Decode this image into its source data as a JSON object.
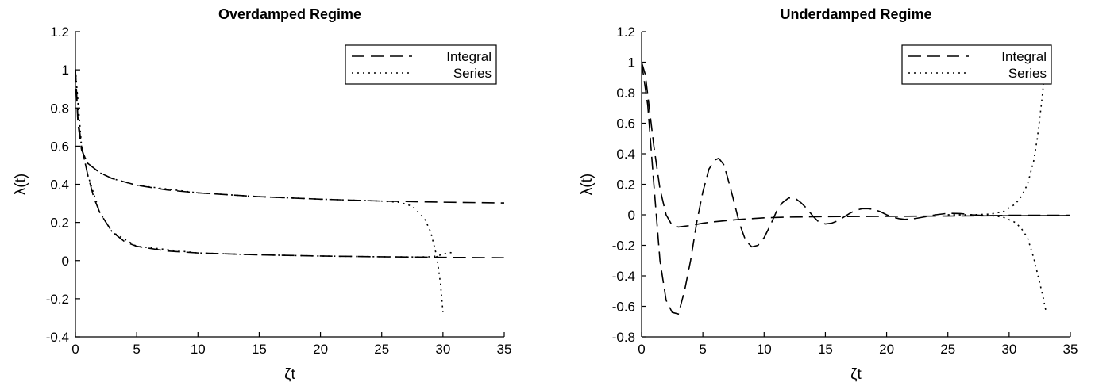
{
  "chart_data": [
    {
      "type": "line",
      "title": "Overdamped Regime",
      "xlabel": "ζt",
      "ylabel": "λ(t)",
      "xlim": [
        0,
        35
      ],
      "ylim": [
        -0.4,
        1.2
      ],
      "xticks": [
        "0",
        "5",
        "10",
        "15",
        "20",
        "25",
        "30",
        "35"
      ],
      "yticks": [
        "-0.4",
        "-0.2",
        "0",
        "0.2",
        "0.4",
        "0.6",
        "0.8",
        "1",
        "1.2"
      ],
      "grid": false,
      "legend_position": "top-right",
      "legend": [
        {
          "label": "Integral",
          "style": "dashed"
        },
        {
          "label": "Series",
          "style": "dotted"
        }
      ],
      "curves": [
        {
          "style": "dashed",
          "x": [
            0.0,
            0.2,
            0.5,
            1.0,
            2.0,
            3.0,
            5.0,
            7.5,
            10.0,
            15.0,
            20.0,
            25.0,
            30.0,
            35.0
          ],
          "y": [
            1.0,
            0.72,
            0.58,
            0.51,
            0.46,
            0.43,
            0.395,
            0.37,
            0.355,
            0.335,
            0.322,
            0.312,
            0.306,
            0.302
          ]
        },
        {
          "style": "dashed",
          "x": [
            0.0,
            0.2,
            0.5,
            1.0,
            1.5,
            2.0,
            3.0,
            4.0,
            5.0,
            7.5,
            10.0,
            15.0,
            20.0,
            25.0,
            30.0,
            35.0
          ],
          "y": [
            1.0,
            0.75,
            0.6,
            0.45,
            0.33,
            0.25,
            0.15,
            0.1,
            0.075,
            0.05,
            0.04,
            0.03,
            0.024,
            0.02,
            0.017,
            0.015
          ]
        },
        {
          "style": "dotted",
          "x": [
            0.0,
            0.5,
            1.0,
            2.0,
            3.0,
            5.0,
            10.0,
            15.0,
            20.0,
            25.0,
            26.5,
            27.5,
            28.5,
            29.0,
            29.5,
            29.8,
            30.0
          ],
          "y": [
            1.0,
            0.58,
            0.51,
            0.46,
            0.43,
            0.395,
            0.355,
            0.335,
            0.322,
            0.312,
            0.305,
            0.285,
            0.22,
            0.15,
            0.02,
            -0.12,
            -0.27
          ]
        },
        {
          "style": "dotted",
          "x": [
            0.0,
            0.5,
            1.0,
            2.0,
            3.0,
            5.0,
            10.0,
            15.0,
            20.0,
            25.0,
            28.0,
            29.0,
            29.5,
            30.0,
            30.5,
            31.0
          ],
          "y": [
            1.0,
            0.6,
            0.45,
            0.25,
            0.15,
            0.075,
            0.04,
            0.03,
            0.024,
            0.02,
            0.019,
            0.02,
            0.024,
            0.033,
            0.042,
            0.04
          ]
        }
      ]
    },
    {
      "type": "line",
      "title": "Underdamped Regime",
      "xlabel": "ζt",
      "ylabel": "λ(t)",
      "xlim": [
        0,
        35
      ],
      "ylim": [
        -0.8,
        1.2
      ],
      "xticks": [
        "0",
        "5",
        "10",
        "15",
        "20",
        "25",
        "30",
        "35"
      ],
      "yticks": [
        "-0.8",
        "-0.6",
        "-0.4",
        "-0.2",
        "0",
        "0.2",
        "0.4",
        "0.6",
        "0.8",
        "1",
        "1.2"
      ],
      "grid": false,
      "legend_position": "top-right",
      "legend": [
        {
          "label": "Integral",
          "style": "dashed"
        },
        {
          "label": "Series",
          "style": "dotted"
        }
      ],
      "curves": [
        {
          "style": "dashed",
          "x": [
            0.0,
            0.3,
            0.6,
            1.0,
            1.5,
            2.0,
            2.5,
            3.0,
            3.5,
            4.0,
            5.0,
            6.0,
            8.0,
            10.0,
            12.0,
            15.0,
            20.0,
            25.0,
            30.0,
            35.0
          ],
          "y": [
            1.0,
            0.92,
            0.72,
            0.45,
            0.17,
            0.0,
            -0.07,
            -0.08,
            -0.075,
            -0.07,
            -0.055,
            -0.045,
            -0.03,
            -0.02,
            -0.015,
            -0.012,
            -0.01,
            -0.008,
            -0.006,
            -0.005
          ]
        },
        {
          "style": "dashed",
          "x": [
            0.0,
            0.5,
            1.0,
            1.5,
            2.0,
            2.5,
            3.0,
            3.5,
            4.0,
            4.5,
            5.0,
            5.5,
            6.0,
            6.3,
            6.7,
            7.0,
            7.5,
            8.0,
            8.5,
            9.0,
            9.5,
            10.0,
            10.5,
            11.0,
            11.5,
            12.0,
            12.5,
            13.0,
            13.5,
            14.0,
            14.5,
            15.0,
            15.5,
            16.0,
            16.5,
            17.0,
            17.5,
            18.0,
            18.5,
            19.0,
            19.5,
            20.0,
            20.5,
            21.0,
            21.5,
            22.0,
            22.5,
            23.0,
            24.0,
            25.0,
            26.0,
            27.0,
            28.0,
            29.0,
            30.0,
            35.0
          ],
          "y": [
            1.0,
            0.72,
            0.2,
            -0.3,
            -0.56,
            -0.64,
            -0.65,
            -0.5,
            -0.3,
            -0.05,
            0.15,
            0.3,
            0.36,
            0.37,
            0.33,
            0.25,
            0.1,
            -0.06,
            -0.17,
            -0.21,
            -0.2,
            -0.15,
            -0.07,
            0.02,
            0.08,
            0.11,
            0.11,
            0.08,
            0.04,
            -0.01,
            -0.05,
            -0.06,
            -0.055,
            -0.04,
            -0.015,
            0.01,
            0.03,
            0.04,
            0.04,
            0.035,
            0.02,
            0.0,
            -0.015,
            -0.025,
            -0.03,
            -0.028,
            -0.022,
            -0.015,
            0.0,
            0.01,
            0.008,
            0.0,
            -0.005,
            -0.005,
            -0.003,
            -0.003
          ]
        },
        {
          "style": "dotted",
          "x": [
            25.0,
            27.0,
            28.5,
            29.5,
            30.5,
            31.0,
            31.5,
            32.0,
            32.3,
            32.6,
            32.8,
            33.0
          ],
          "y": [
            0.0,
            0.0,
            0.005,
            0.02,
            0.07,
            0.12,
            0.2,
            0.35,
            0.5,
            0.7,
            0.85,
            1.0
          ]
        },
        {
          "style": "dotted",
          "x": [
            25.0,
            27.0,
            28.5,
            29.5,
            30.5,
            31.0,
            31.5,
            32.0,
            32.3,
            32.6,
            32.8,
            33.0
          ],
          "y": [
            0.0,
            0.0,
            -0.005,
            -0.015,
            -0.05,
            -0.09,
            -0.15,
            -0.28,
            -0.38,
            -0.48,
            -0.55,
            -0.63
          ]
        }
      ]
    }
  ]
}
